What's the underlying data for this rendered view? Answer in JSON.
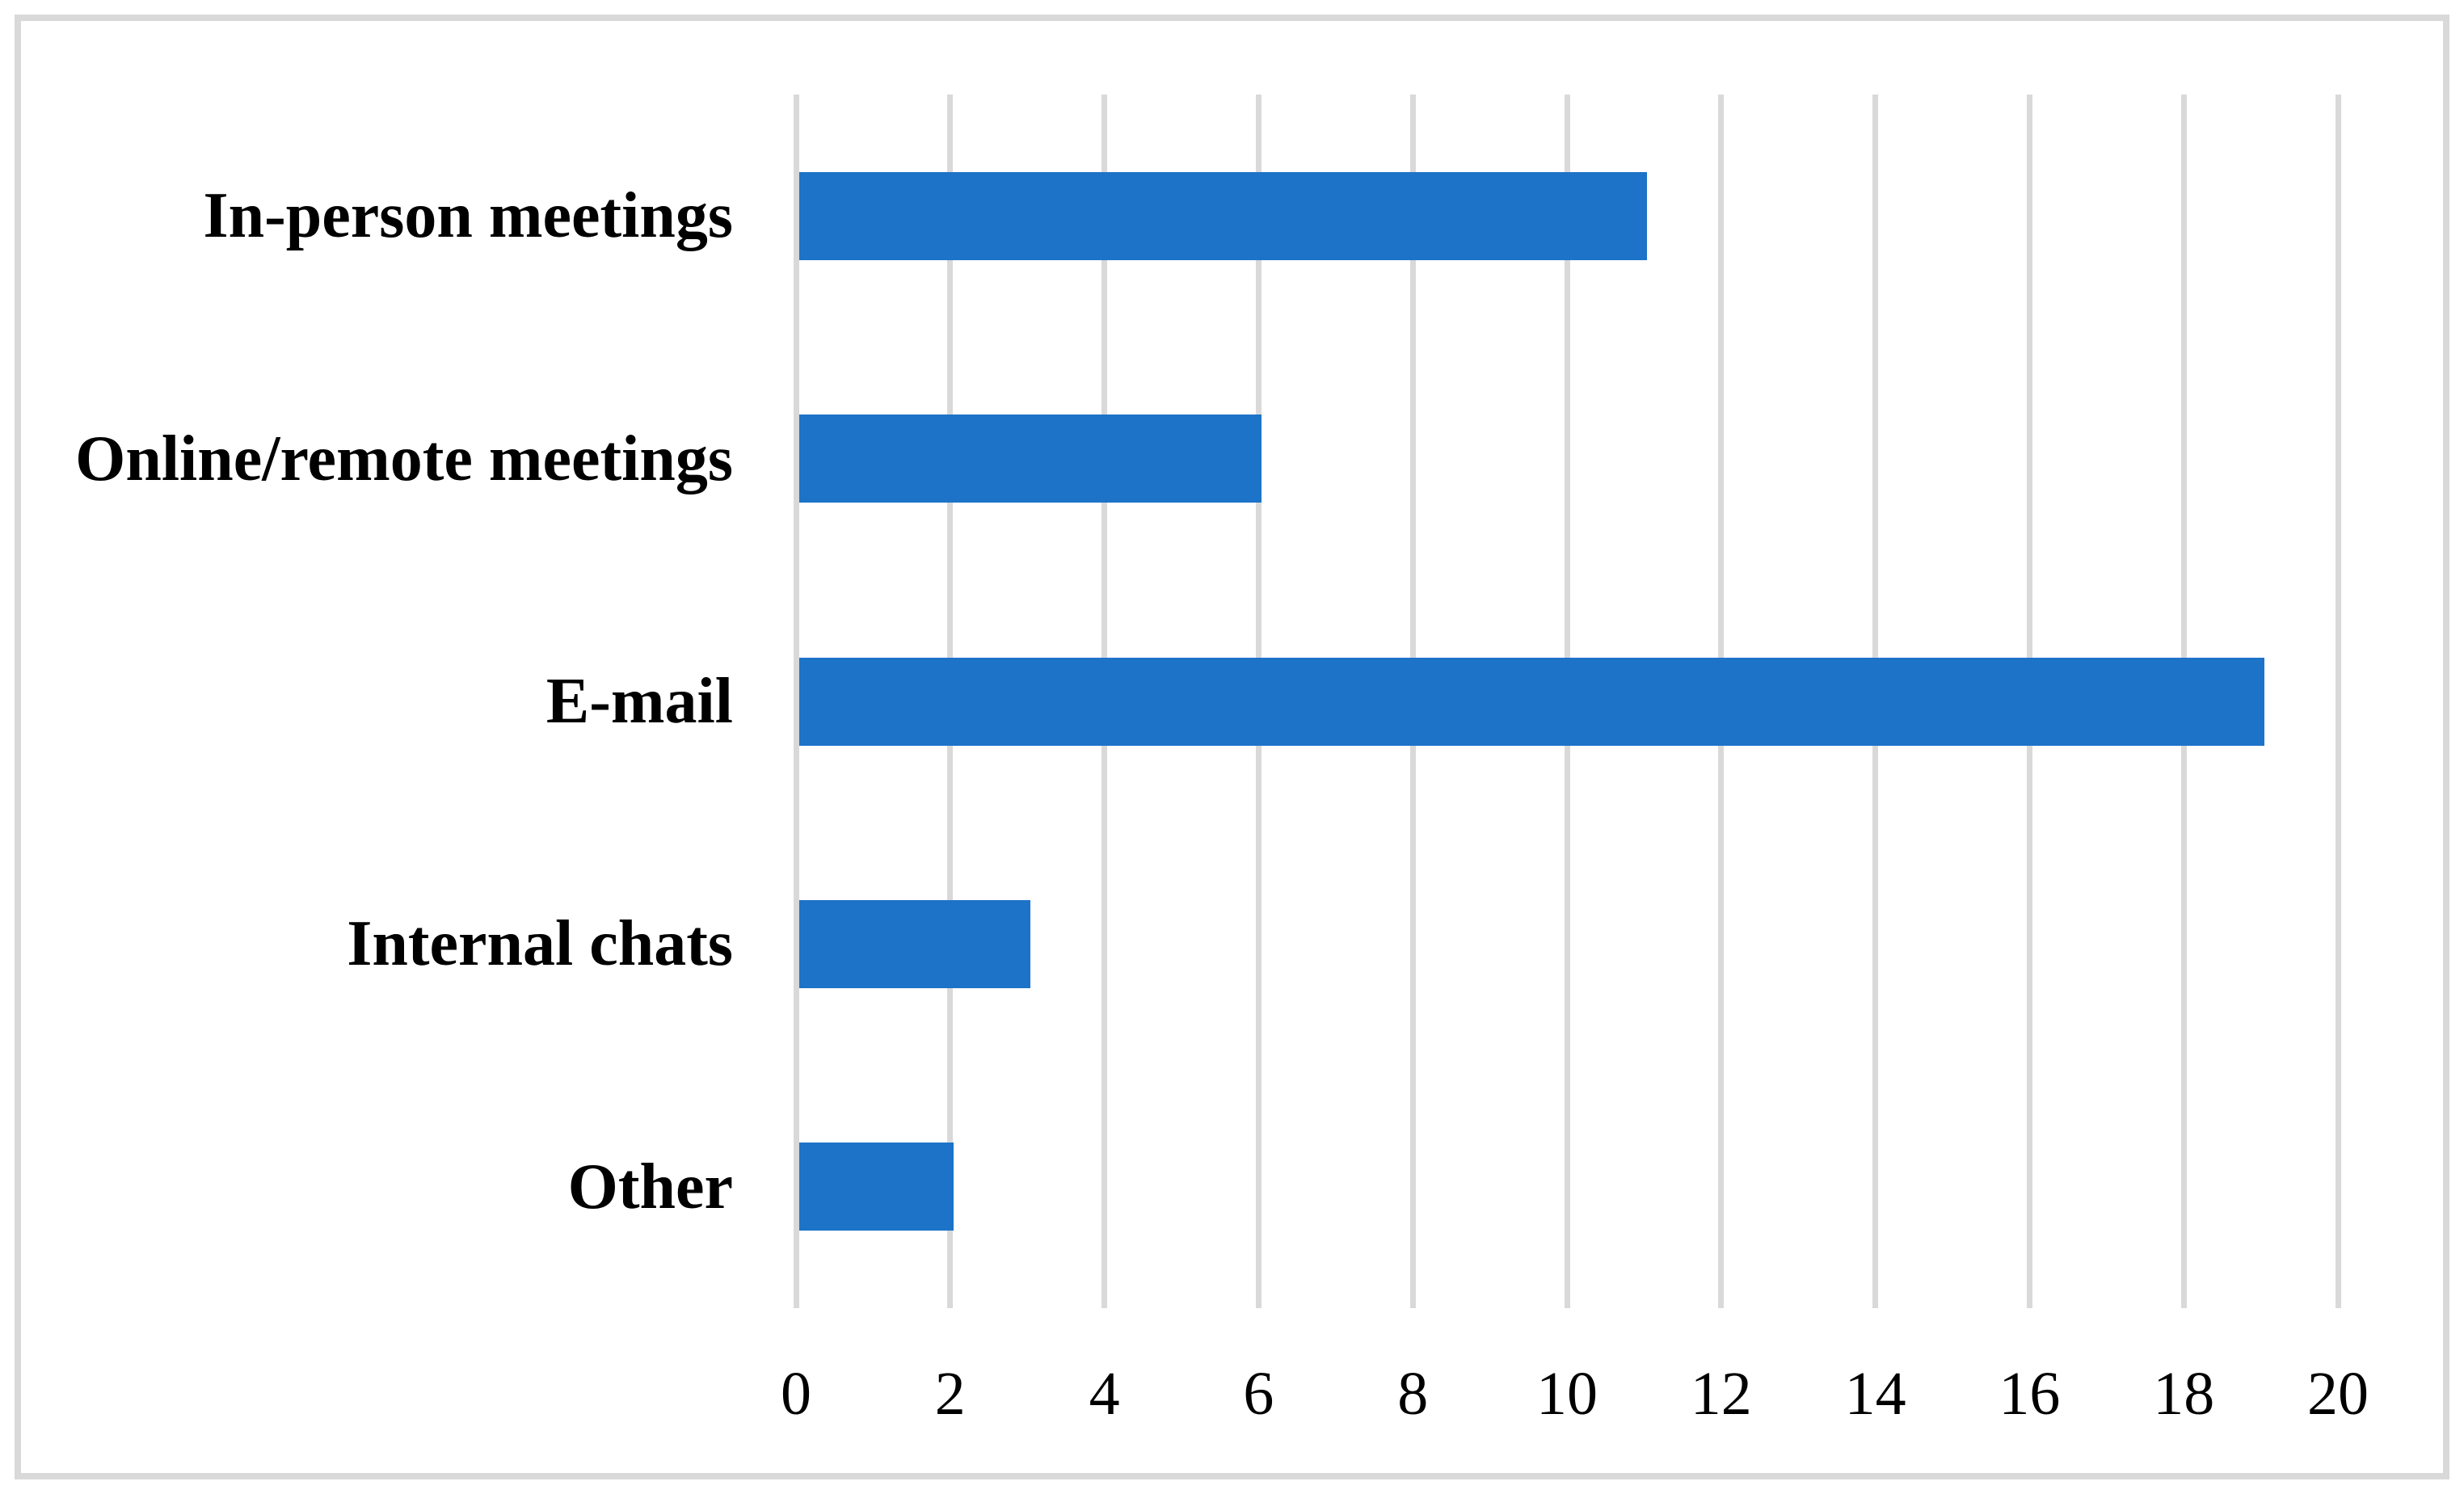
{
  "chart_data": {
    "type": "bar",
    "orientation": "horizontal",
    "title": "",
    "xlabel": "",
    "ylabel": "",
    "categories": [
      "In-person meetings",
      "Online/remote meetings",
      "E-mail",
      "Internal chats",
      "Other"
    ],
    "values": [
      11,
      6,
      19,
      3,
      2
    ],
    "xlim": [
      0,
      20
    ],
    "xticks": [
      0,
      2,
      4,
      6,
      8,
      10,
      12,
      14,
      16,
      18,
      20
    ],
    "grid": "vertical-only",
    "legend_position": "none",
    "data_labels": "none",
    "colors": {
      "bar": "#1d73c8",
      "gridline": "#d9d9d9",
      "frame_border": "#d9d9d9",
      "text": "#000000",
      "background": "#ffffff"
    }
  }
}
